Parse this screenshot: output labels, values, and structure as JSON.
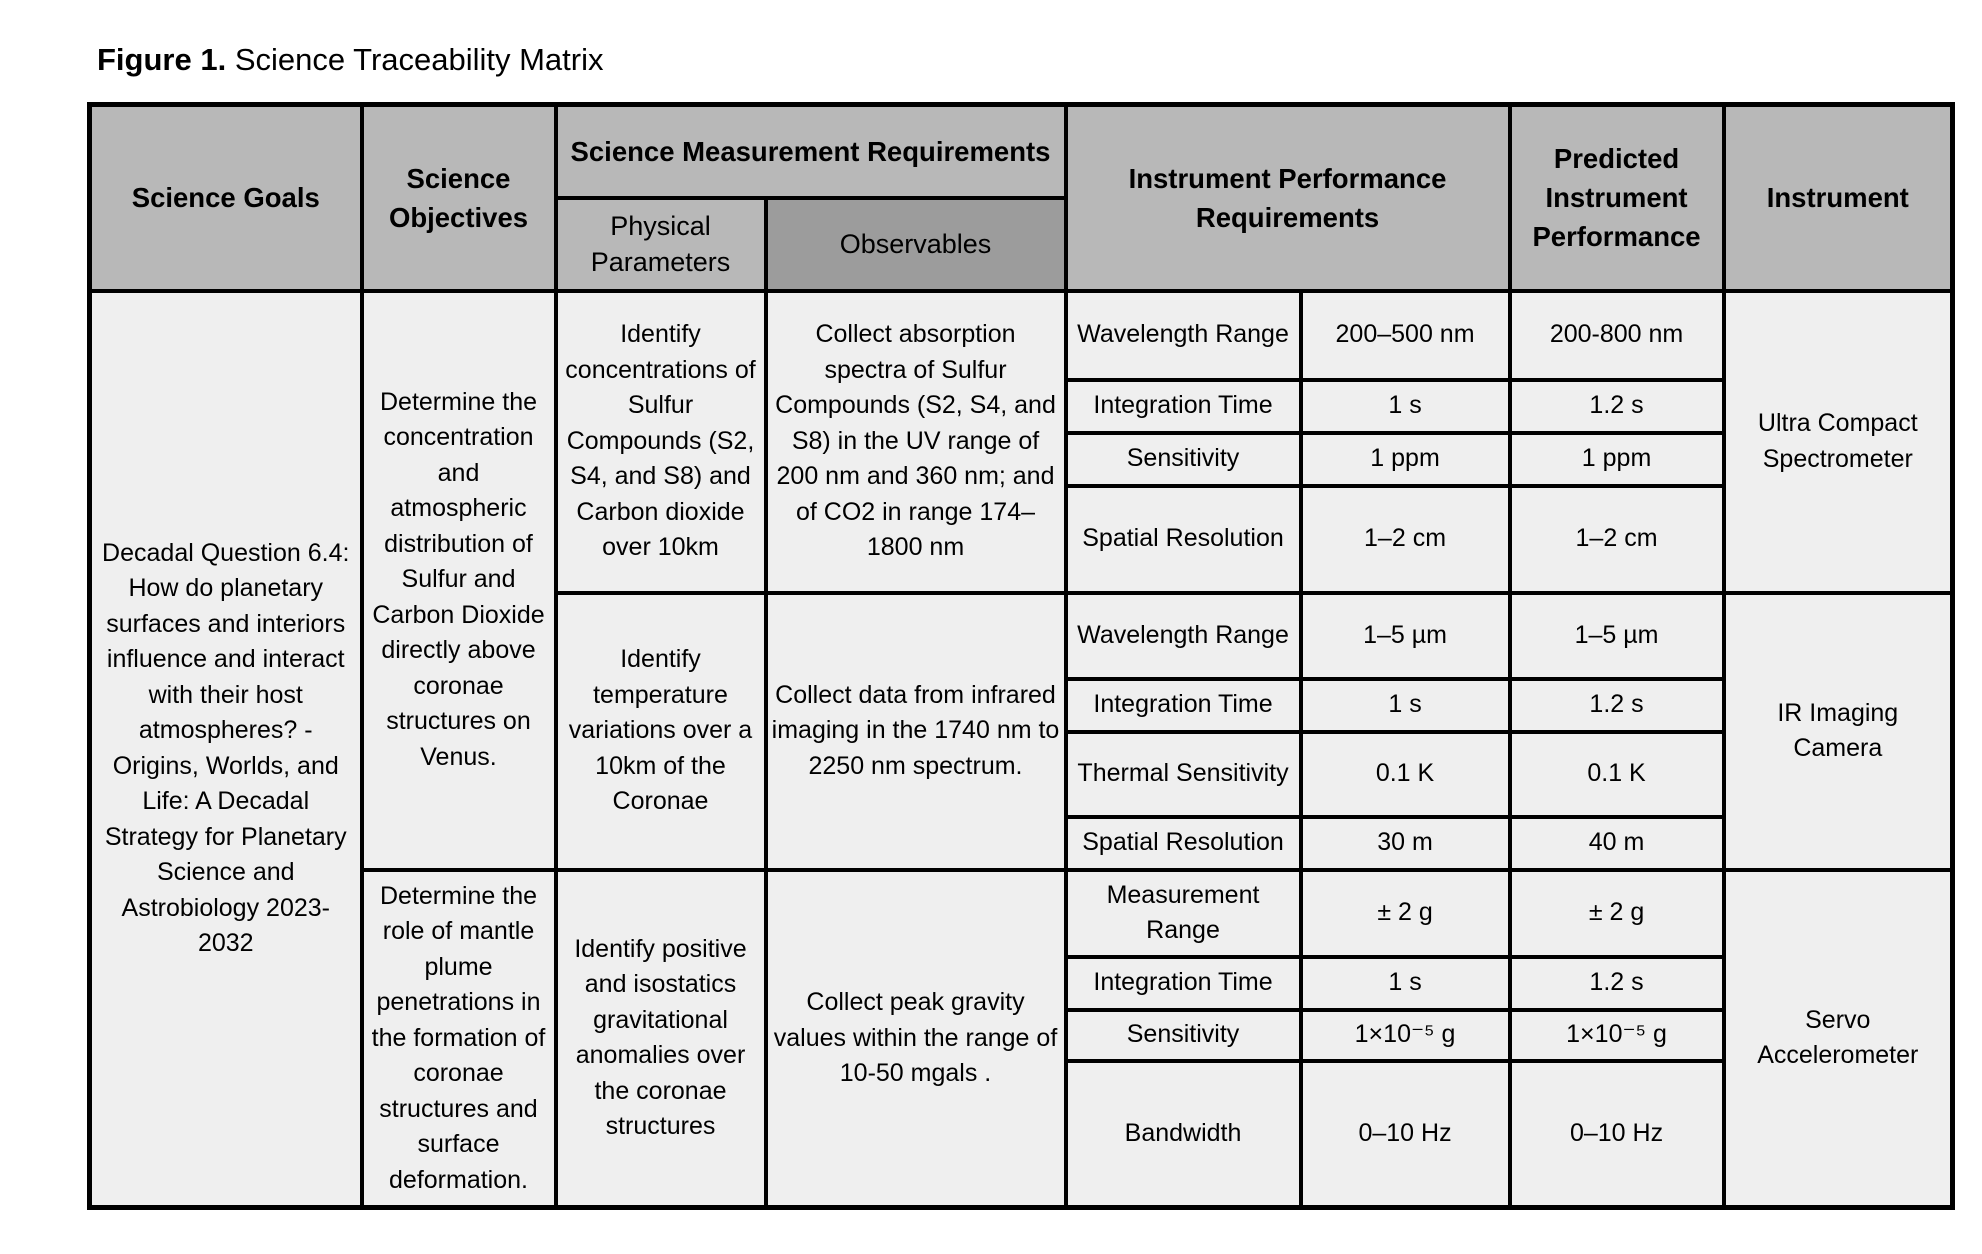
{
  "figure": {
    "label": "Figure 1.",
    "title": " Science Traceability Matrix"
  },
  "headers": {
    "science_goals": "Science Goals",
    "science_objectives": "Science Objectives",
    "measurement_requirements": "Science Measurement Requirements",
    "physical_parameters": "Physical Parameters",
    "observables": "Observables",
    "instrument_performance_requirements": "Instrument Performance Requirements",
    "predicted_instrument_performance": "Predicted Instrument Performance",
    "instrument": "Instrument"
  },
  "science_goal": "Decadal Question 6.4: How do planetary surfaces and interiors influence and interact with their host atmospheres? - Origins, Worlds, and Life: A Decadal Strategy for Planetary Science and Astrobiology 2023-2032",
  "objectives": [
    "Determine the concentration and atmospheric distribution of Sulfur and Carbon Dioxide directly above coronae structures on Venus.",
    "Determine the role of mantle plume penetrations in the formation of coronae structures and surface deformation."
  ],
  "groups": [
    {
      "physical_parameter": "Identify concentrations of Sulfur Compounds (S2, S4, and S8) and Carbon dioxide over 10km",
      "observable": "Collect absorption spectra of Sulfur Compounds (S2, S4, and S8) in the UV range of 200 nm and 360 nm; and of CO2 in range 174–1800 nm",
      "instrument": "Ultra Compact Spectrometer",
      "rows": [
        {
          "parameter": "Wavelength Range",
          "requirement": "200–500 nm",
          "predicted": "200-800 nm"
        },
        {
          "parameter": "Integration Time",
          "requirement": "1 s",
          "predicted": "1.2 s"
        },
        {
          "parameter": "Sensitivity",
          "requirement": "1 ppm",
          "predicted": "1 ppm"
        },
        {
          "parameter": "Spatial Resolution",
          "requirement": "1–2 cm",
          "predicted": "1–2 cm"
        }
      ]
    },
    {
      "physical_parameter": "Identify temperature variations over a 10km of the Coronae",
      "observable": "Collect data from infrared imaging in the 1740 nm to 2250 nm spectrum.",
      "instrument": "IR Imaging Camera",
      "rows": [
        {
          "parameter": "Wavelength Range",
          "requirement": "1–5 µm",
          "predicted": "1–5 µm"
        },
        {
          "parameter": "Integration Time",
          "requirement": "1 s",
          "predicted": "1.2 s"
        },
        {
          "parameter": "Thermal Sensitivity",
          "requirement": "0.1 K",
          "predicted": "0.1 K"
        },
        {
          "parameter": "Spatial Resolution",
          "requirement": "30 m",
          "predicted": "40 m"
        }
      ]
    },
    {
      "physical_parameter": "Identify positive and isostatics gravitational anomalies over the coronae structures",
      "observable": "Collect peak gravity values within the range of 10-50 mgals .",
      "instrument": "Servo Accelerometer",
      "rows": [
        {
          "parameter": "Measurement Range",
          "requirement": "± 2 g",
          "predicted": "± 2 g"
        },
        {
          "parameter": "Integration Time",
          "requirement": "1 s",
          "predicted": "1.2 s"
        },
        {
          "parameter": "Sensitivity",
          "requirement": "1×10⁻⁵ g",
          "predicted": "1×10⁻⁵ g"
        },
        {
          "parameter": "Bandwidth",
          "requirement": "0–10 Hz",
          "predicted": "0–10 Hz"
        }
      ]
    }
  ]
}
